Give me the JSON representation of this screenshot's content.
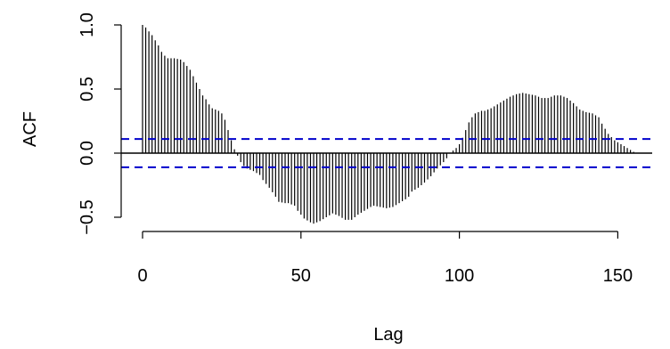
{
  "chart_data": {
    "type": "bar",
    "title": "",
    "xlabel": "Lag",
    "ylabel": "ACF",
    "xlim": [
      0,
      155
    ],
    "ylim": [
      -0.6,
      1.0
    ],
    "x_ticks": [
      0,
      50,
      100,
      150
    ],
    "x_tick_labels": [
      "0",
      "50",
      "100",
      "150"
    ],
    "y_ticks": [
      -0.5,
      0.0,
      0.5,
      1.0
    ],
    "y_tick_labels": [
      "−0.5",
      "0.0",
      "0.5",
      "1.0"
    ],
    "confidence_bound": 0.11,
    "grid": false,
    "colors": {
      "bars": "#000000",
      "ci_lines": "#0000cc",
      "zero_line": "#000000"
    },
    "acf_anchors": [
      [
        0,
        1.0
      ],
      [
        1,
        0.98
      ],
      [
        2,
        0.95
      ],
      [
        3,
        0.92
      ],
      [
        4,
        0.88
      ],
      [
        5,
        0.84
      ],
      [
        6,
        0.79
      ],
      [
        7,
        0.76
      ],
      [
        8,
        0.74
      ],
      [
        10,
        0.74
      ],
      [
        12,
        0.73
      ],
      [
        13,
        0.71
      ],
      [
        14,
        0.68
      ],
      [
        15,
        0.65
      ],
      [
        16,
        0.6
      ],
      [
        17,
        0.55
      ],
      [
        18,
        0.5
      ],
      [
        19,
        0.45
      ],
      [
        20,
        0.42
      ],
      [
        21,
        0.38
      ],
      [
        22,
        0.35
      ],
      [
        24,
        0.33
      ],
      [
        25,
        0.31
      ],
      [
        26,
        0.26
      ],
      [
        27,
        0.18
      ],
      [
        28,
        0.1
      ],
      [
        29,
        0.03
      ],
      [
        30,
        -0.02
      ],
      [
        31,
        -0.07
      ],
      [
        32,
        -0.1
      ],
      [
        33,
        -0.12
      ],
      [
        35,
        -0.14
      ],
      [
        37,
        -0.17
      ],
      [
        38,
        -0.21
      ],
      [
        40,
        -0.27
      ],
      [
        42,
        -0.34
      ],
      [
        43,
        -0.38
      ],
      [
        45,
        -0.39
      ],
      [
        46,
        -0.39
      ],
      [
        48,
        -0.41
      ],
      [
        49,
        -0.45
      ],
      [
        51,
        -0.51
      ],
      [
        53,
        -0.54
      ],
      [
        54,
        -0.55
      ],
      [
        56,
        -0.53
      ],
      [
        58,
        -0.5
      ],
      [
        60,
        -0.47
      ],
      [
        62,
        -0.49
      ],
      [
        64,
        -0.52
      ],
      [
        66,
        -0.52
      ],
      [
        68,
        -0.48
      ],
      [
        70,
        -0.45
      ],
      [
        72,
        -0.42
      ],
      [
        73,
        -0.41
      ],
      [
        75,
        -0.42
      ],
      [
        77,
        -0.43
      ],
      [
        79,
        -0.42
      ],
      [
        81,
        -0.39
      ],
      [
        83,
        -0.36
      ],
      [
        84,
        -0.34
      ],
      [
        85,
        -0.3
      ],
      [
        87,
        -0.27
      ],
      [
        89,
        -0.23
      ],
      [
        91,
        -0.18
      ],
      [
        93,
        -0.12
      ],
      [
        95,
        -0.07
      ],
      [
        96,
        -0.04
      ],
      [
        97,
        0.0
      ],
      [
        98,
        0.02
      ],
      [
        99,
        0.04
      ],
      [
        100,
        0.07
      ],
      [
        101,
        0.12
      ],
      [
        102,
        0.18
      ],
      [
        103,
        0.24
      ],
      [
        104,
        0.28
      ],
      [
        105,
        0.31
      ],
      [
        107,
        0.33
      ],
      [
        108,
        0.33
      ],
      [
        110,
        0.35
      ],
      [
        112,
        0.38
      ],
      [
        114,
        0.41
      ],
      [
        116,
        0.44
      ],
      [
        118,
        0.46
      ],
      [
        120,
        0.47
      ],
      [
        122,
        0.46
      ],
      [
        124,
        0.45
      ],
      [
        126,
        0.43
      ],
      [
        128,
        0.43
      ],
      [
        130,
        0.45
      ],
      [
        132,
        0.45
      ],
      [
        134,
        0.43
      ],
      [
        136,
        0.39
      ],
      [
        138,
        0.34
      ],
      [
        140,
        0.32
      ],
      [
        142,
        0.31
      ],
      [
        144,
        0.28
      ],
      [
        145,
        0.23
      ],
      [
        147,
        0.15
      ],
      [
        149,
        0.1
      ],
      [
        151,
        0.07
      ],
      [
        153,
        0.04
      ],
      [
        155,
        0.01
      ]
    ]
  }
}
